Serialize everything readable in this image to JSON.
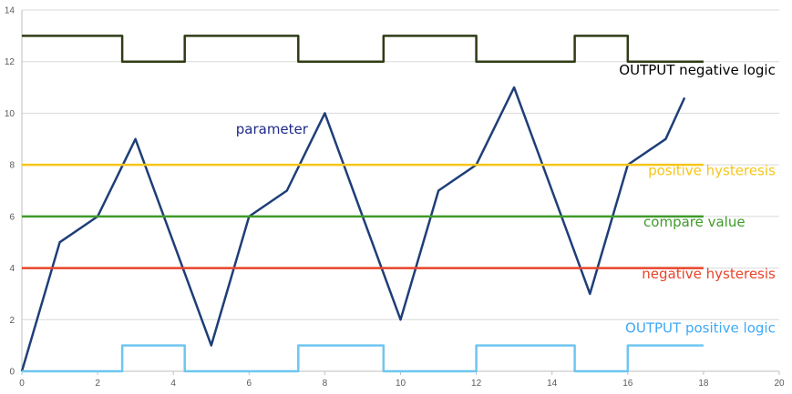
{
  "chart_data": {
    "type": "line",
    "xlim": [
      0,
      20
    ],
    "ylim": [
      0,
      14
    ],
    "x_ticks": [
      "0",
      "2",
      "4",
      "6",
      "8",
      "10",
      "12",
      "14",
      "16",
      "18",
      "20"
    ],
    "y_ticks": [
      "0",
      "2",
      "4",
      "6",
      "8",
      "10",
      "12",
      "14"
    ],
    "grid": "horizontal",
    "series": [
      {
        "key": "output_negative",
        "label": "OUTPUT negative logic",
        "color": "#2f3b14",
        "x": [
          0,
          2.65,
          2.65,
          4.3,
          4.3,
          7.3,
          7.3,
          9.55,
          9.55,
          12,
          12,
          14.6,
          14.6,
          16,
          16,
          18
        ],
        "y": [
          13,
          13,
          12,
          12,
          13,
          13,
          12,
          12,
          13,
          13,
          12,
          12,
          13,
          13,
          12,
          12
        ]
      },
      {
        "key": "parameter",
        "label": "parameter",
        "color": "#1f3e78",
        "x": [
          0,
          1,
          2,
          3,
          4,
          5,
          6,
          7,
          8,
          9,
          10,
          11,
          12,
          13,
          14,
          15,
          16,
          17,
          17.5
        ],
        "y": [
          0,
          5,
          6,
          9,
          5,
          1,
          6,
          7,
          10,
          6,
          2,
          7,
          8,
          11,
          7,
          3,
          8,
          9,
          10.6
        ]
      },
      {
        "key": "positive_hysteresis",
        "label": "positive hysteresis",
        "color": "#f5c518",
        "x": [
          0,
          18
        ],
        "y": [
          8,
          8
        ]
      },
      {
        "key": "compare_value",
        "label": "compare value",
        "color": "#3f9b2a",
        "x": [
          0,
          18
        ],
        "y": [
          6,
          6
        ]
      },
      {
        "key": "negative_hysteresis",
        "label": "negative hysteresis",
        "color": "#e8442a",
        "x": [
          0,
          18
        ],
        "y": [
          4,
          4
        ]
      },
      {
        "key": "output_positive",
        "label": "OUTPUT positive logic",
        "color": "#6ec6f0",
        "x": [
          0,
          2.65,
          2.65,
          4.3,
          4.3,
          7.3,
          7.3,
          9.55,
          9.55,
          12,
          12,
          14.6,
          14.6,
          16,
          16,
          18
        ],
        "y": [
          0,
          0,
          1,
          1,
          0,
          0,
          1,
          1,
          0,
          0,
          1,
          1,
          0,
          0,
          1,
          1
        ]
      }
    ],
    "annotations": [
      {
        "series": "output_negative",
        "text": "OUTPUT negative logic",
        "color": "#000000",
        "anchor": "end",
        "x": 19.9,
        "y": 11.5
      },
      {
        "series": "parameter",
        "text": "parameter",
        "color": "#1f2a8a",
        "anchor": "start",
        "x": 5.65,
        "y": 9.2
      },
      {
        "series": "positive_hysteresis",
        "text": "positive hysteresis",
        "color": "#f5c518",
        "anchor": "end",
        "x": 19.9,
        "y": 7.6
      },
      {
        "series": "compare_value",
        "text": "compare value",
        "color": "#3f9b2a",
        "anchor": "end",
        "x": 19.1,
        "y": 5.6
      },
      {
        "series": "negative_hysteresis",
        "text": "negative hysteresis",
        "color": "#e8442a",
        "anchor": "end",
        "x": 19.9,
        "y": 3.6
      },
      {
        "series": "output_positive",
        "text": "OUTPUT positive logic",
        "color": "#3fa9f5",
        "anchor": "end",
        "x": 19.9,
        "y": 1.5
      }
    ]
  }
}
